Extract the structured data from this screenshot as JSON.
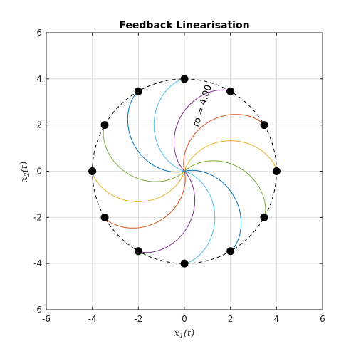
{
  "chart_data": {
    "type": "line",
    "title": "Feedback Linearisation",
    "xlabel": {
      "main": "x",
      "sub": "1",
      "suffix": "(t)"
    },
    "ylabel": {
      "main": "x",
      "sub": "2",
      "suffix": "(t)"
    },
    "xlim": [
      -6,
      6
    ],
    "ylim": [
      -6,
      6
    ],
    "xticks": [
      -6,
      -4,
      -2,
      0,
      2,
      4,
      6
    ],
    "yticks": [
      -6,
      -4,
      -2,
      0,
      2,
      4,
      6
    ],
    "grid": true,
    "annotation": "ro = 4.00",
    "circle_radius": 4,
    "spiral_twist_deg": 75,
    "start_points_deg": [
      0,
      30,
      60,
      90,
      120,
      150,
      180,
      210,
      240,
      270,
      300,
      330
    ],
    "colors": {
      "trajectories": [
        "#EDB120",
        "#D95319",
        "#7E2F8E",
        "#4DBEEE",
        "#0072BD",
        "#77AC30"
      ],
      "circle": "#000000",
      "grid": "#dedede",
      "axes": "#262626",
      "markers": "#000000"
    }
  }
}
